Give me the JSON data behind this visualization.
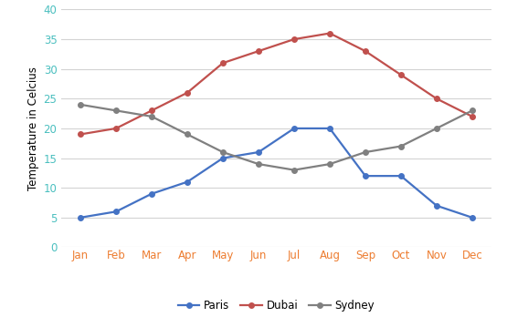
{
  "months": [
    "Jan",
    "Feb",
    "Mar",
    "Apr",
    "May",
    "Jun",
    "Jul",
    "Aug",
    "Sep",
    "Oct",
    "Nov",
    "Dec"
  ],
  "paris": [
    5,
    6,
    9,
    11,
    15,
    16,
    20,
    20,
    12,
    12,
    7,
    5
  ],
  "dubai": [
    19,
    20,
    23,
    26,
    31,
    33,
    35,
    36,
    33,
    29,
    25,
    22
  ],
  "sydney": [
    24,
    23,
    22,
    19,
    16,
    14,
    13,
    14,
    16,
    17,
    20,
    23
  ],
  "paris_color": "#4472c4",
  "dubai_color": "#c0504d",
  "sydney_color": "#808080",
  "tick_color": "#4abfbf",
  "xlabel_color": "#ed7d31",
  "ylabel": "Temperature in Celcius",
  "ylim": [
    0,
    40
  ],
  "yticks": [
    0,
    5,
    10,
    15,
    20,
    25,
    30,
    35,
    40
  ],
  "grid_color": "#d3d3d3",
  "background_color": "#ffffff",
  "legend_labels": [
    "Paris",
    "Dubai",
    "Sydney"
  ],
  "marker": "o",
  "marker_size": 4,
  "line_width": 1.6
}
